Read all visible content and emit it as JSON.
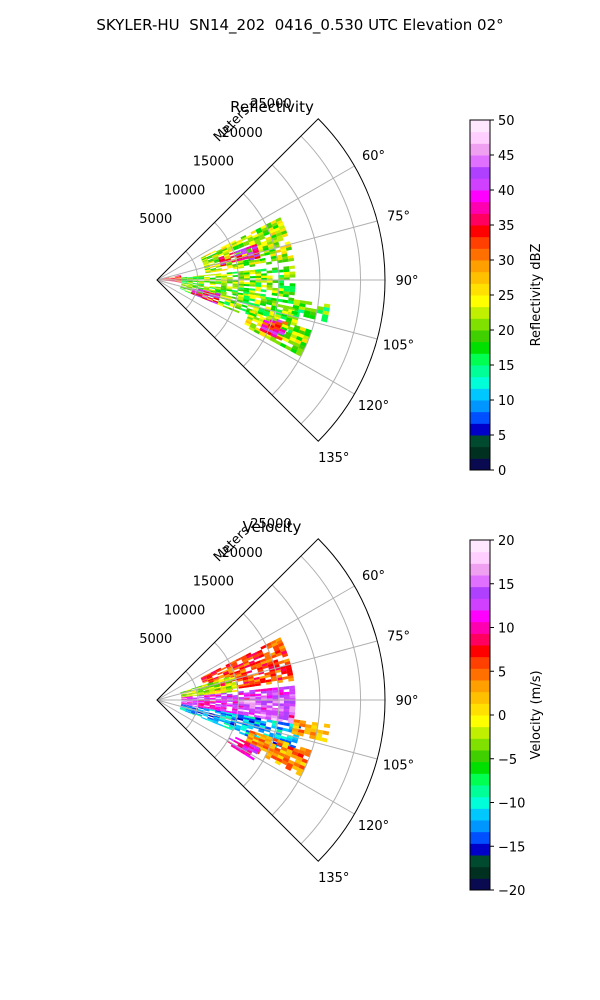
{
  "title": "SKYLER-HU  SN14_202  0416_0.530 UTC Elevation 02°",
  "chart_data": [
    {
      "type": "polar-sector-heatmap",
      "title": "Reflectivity",
      "radial_label": "Meters",
      "radial_ticks": [
        "5000",
        "10000",
        "15000",
        "20000",
        "25000"
      ],
      "radial_tick_values": [
        5000,
        10000,
        15000,
        20000,
        25000
      ],
      "r_max_m": 28000,
      "azimuth_range_deg": [
        45,
        135
      ],
      "azimuth_ticks": [
        "60°",
        "75°",
        "90°",
        "105°",
        "120°",
        "135°"
      ],
      "azimuth_tick_values": [
        60,
        75,
        90,
        105,
        120,
        135
      ],
      "grid": true,
      "colorbar": {
        "label": "Reflectivity dBZ",
        "range": [
          0,
          50
        ],
        "ticks": [
          "0",
          "5",
          "10",
          "15",
          "20",
          "25",
          "30",
          "35",
          "40",
          "45",
          "50"
        ],
        "tick_values": [
          0,
          5,
          10,
          15,
          20,
          25,
          30,
          35,
          40,
          45,
          50
        ],
        "colors": [
          "#0a0a50",
          "#003020",
          "#004a30",
          "#0000c8",
          "#0050ff",
          "#0096ff",
          "#00c8ff",
          "#00ffd8",
          "#00ff96",
          "#00ff50",
          "#00e000",
          "#40d000",
          "#80e000",
          "#c0f000",
          "#ffff00",
          "#ffe000",
          "#ffc000",
          "#ffa000",
          "#ff7000",
          "#ff4000",
          "#ff0000",
          "#ff0060",
          "#ff00b0",
          "#ff00ff",
          "#d040ff",
          "#b040ff",
          "#e070ff",
          "#f0a0f0",
          "#ffd0ff",
          "#ffe8ff"
        ]
      },
      "echo_regions": [
        {
          "az": [
            63,
            82
          ],
          "r_m": [
            6000,
            17000
          ],
          "dbz": 22
        },
        {
          "az": [
            84,
            100
          ],
          "r_m": [
            3000,
            17000
          ],
          "dbz": 20
        },
        {
          "az": [
            100,
            112
          ],
          "r_m": [
            3000,
            18000
          ],
          "dbz": 20
        },
        {
          "az": [
            98,
            104
          ],
          "r_m": [
            17000,
            21500
          ],
          "dbz": 18
        },
        {
          "az": [
            108,
            118
          ],
          "r_m": [
            12000,
            20000
          ],
          "dbz": 22
        },
        {
          "az": [
            70,
            78
          ],
          "r_m": [
            8000,
            13000
          ],
          "dbz": 38
        },
        {
          "az": [
            102,
            112
          ],
          "r_m": [
            4500,
            8000
          ],
          "dbz": 38
        },
        {
          "az": [
            108,
            116
          ],
          "r_m": [
            14000,
            17000
          ],
          "dbz": 36
        },
        {
          "az": [
            78,
            96
          ],
          "r_m": [
            0,
            3000
          ],
          "dbz": 33
        }
      ]
    },
    {
      "type": "polar-sector-heatmap",
      "title": "Velocity",
      "radial_label": "Meters",
      "radial_ticks": [
        "5000",
        "10000",
        "15000",
        "20000",
        "25000"
      ],
      "radial_tick_values": [
        5000,
        10000,
        15000,
        20000,
        25000
      ],
      "r_max_m": 28000,
      "azimuth_range_deg": [
        45,
        135
      ],
      "azimuth_ticks": [
        "60°",
        "75°",
        "90°",
        "105°",
        "120°",
        "135°"
      ],
      "azimuth_tick_values": [
        60,
        75,
        90,
        105,
        120,
        135
      ],
      "grid": true,
      "colorbar": {
        "label": "Velocity (m/s)",
        "range": [
          -20,
          20
        ],
        "ticks": [
          "−20",
          "−15",
          "−10",
          "−5",
          "0",
          "5",
          "10",
          "15",
          "20"
        ],
        "tick_values": [
          -20,
          -15,
          -10,
          -5,
          0,
          5,
          10,
          15,
          20
        ],
        "colors": [
          "#0a0a50",
          "#003020",
          "#004a30",
          "#0000c8",
          "#0050ff",
          "#0096ff",
          "#00c8ff",
          "#00ffd8",
          "#00ff96",
          "#00ff50",
          "#00e000",
          "#40d000",
          "#80e000",
          "#c0f000",
          "#ffff00",
          "#ffe000",
          "#ffc000",
          "#ffa000",
          "#ff7000",
          "#ff4000",
          "#ff0000",
          "#ff0060",
          "#ff00b0",
          "#ff00ff",
          "#d040ff",
          "#b040ff",
          "#e070ff",
          "#f0a0f0",
          "#ffd0ff",
          "#ffe8ff"
        ]
      },
      "echo_regions": [
        {
          "az": [
            63,
            82
          ],
          "r_m": [
            6000,
            17000
          ],
          "vel": 6
        },
        {
          "az": [
            72,
            84
          ],
          "r_m": [
            3000,
            10000
          ],
          "vel": -2
        },
        {
          "az": [
            84,
            100
          ],
          "r_m": [
            3000,
            17000
          ],
          "vel": 12
        },
        {
          "az": [
            88,
            100
          ],
          "r_m": [
            10000,
            17000
          ],
          "vel": 15
        },
        {
          "az": [
            100,
            112
          ],
          "r_m": [
            3000,
            18000
          ],
          "vel": -12
        },
        {
          "az": [
            98,
            104
          ],
          "r_m": [
            17000,
            21500
          ],
          "vel": 3
        },
        {
          "az": [
            108,
            118
          ],
          "r_m": [
            12000,
            20000
          ],
          "vel": 4
        },
        {
          "az": [
            115,
            122
          ],
          "r_m": [
            10000,
            14000
          ],
          "vel": 11
        }
      ]
    }
  ]
}
